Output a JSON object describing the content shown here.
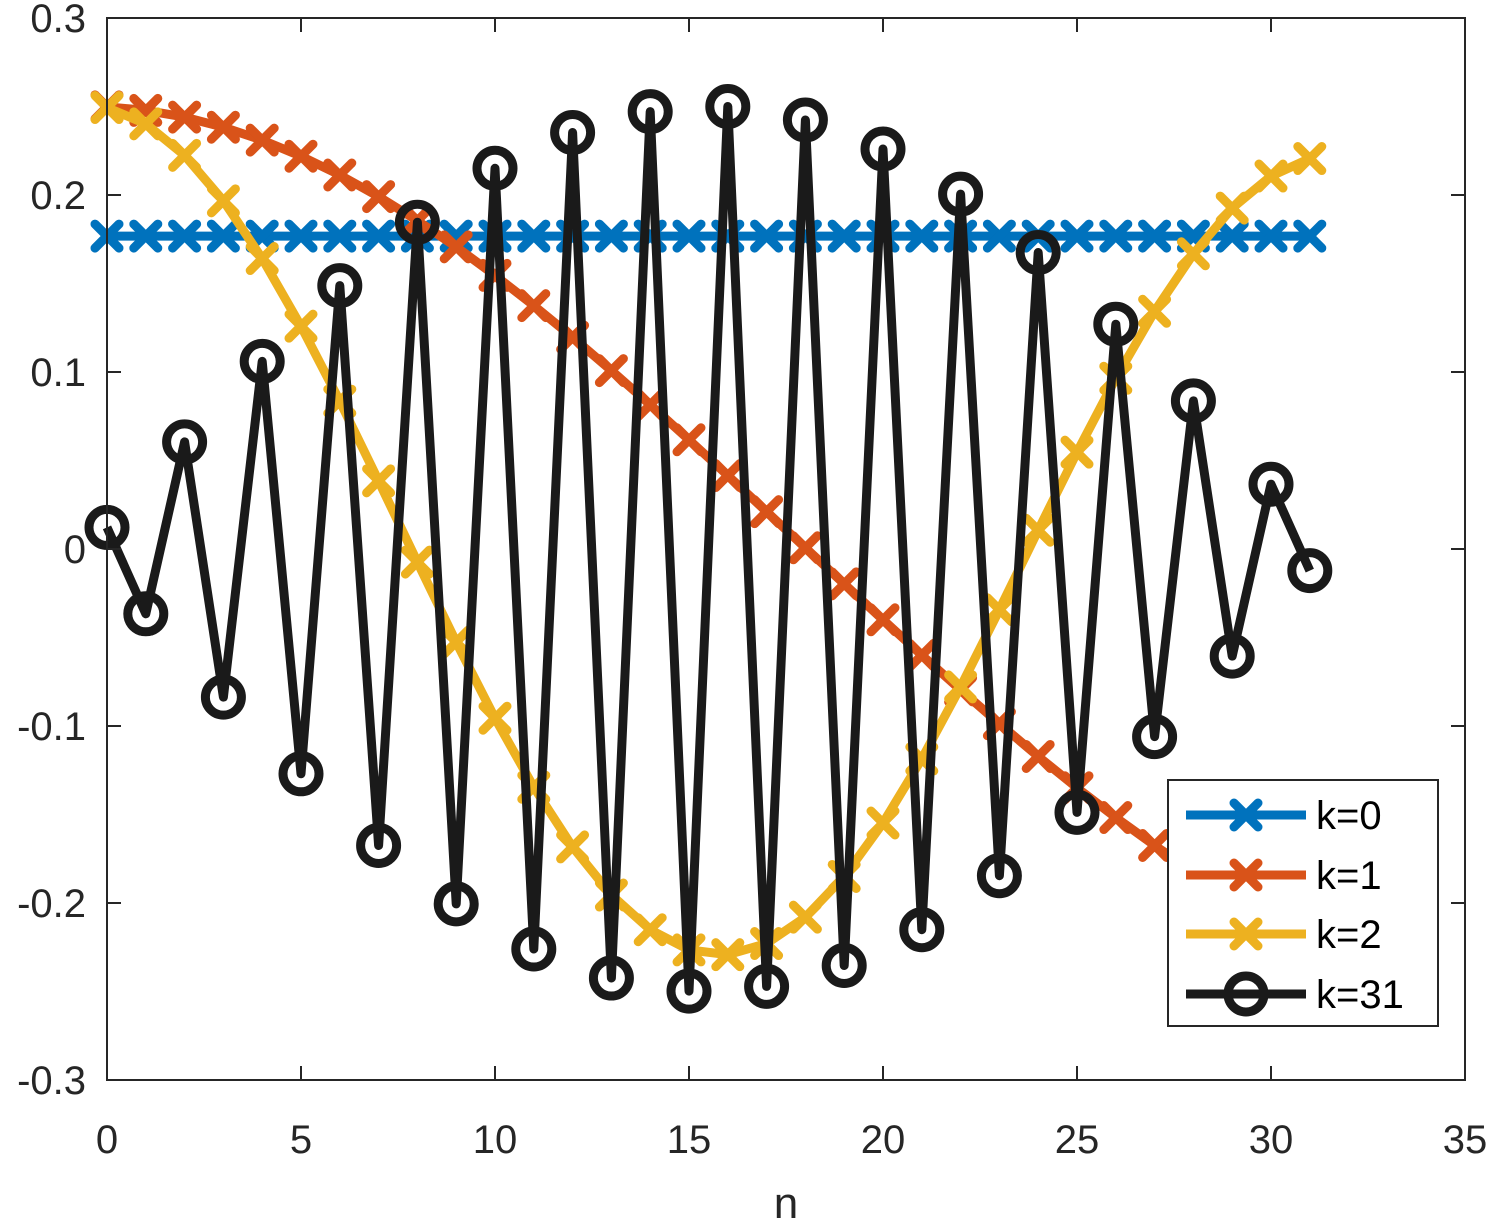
{
  "chart_data": {
    "type": "line",
    "title": "",
    "xlabel": "n",
    "ylabel": "",
    "xlim": [
      0,
      35
    ],
    "ylim": [
      -0.3,
      0.3
    ],
    "xticks": [
      0,
      5,
      10,
      15,
      20,
      25,
      30,
      35
    ],
    "xtick_labels": [
      "0",
      "5",
      "10",
      "15",
      "20",
      "25",
      "30",
      "35"
    ],
    "yticks": [
      0.3,
      0.2,
      0.1,
      0,
      -0.1,
      -0.2,
      -0.3
    ],
    "ytick_labels": [
      "0.3",
      "0.2",
      "0.1",
      "0",
      "-0.1",
      "-0.2",
      "-0.3"
    ],
    "grid": false,
    "legend_position": "bottom-right",
    "x": [
      0,
      1,
      2,
      3,
      4,
      5,
      6,
      7,
      8,
      9,
      10,
      11,
      12,
      13,
      14,
      15,
      16,
      17,
      18,
      19,
      20,
      21,
      22,
      23,
      24,
      25,
      26,
      27,
      28,
      29,
      30,
      31
    ],
    "series": [
      {
        "name": "k=0",
        "color": "#0072BD",
        "marker": "x",
        "values": [
          0.1768,
          0.1768,
          0.1768,
          0.1768,
          0.1768,
          0.1768,
          0.1768,
          0.1768,
          0.1768,
          0.1768,
          0.1768,
          0.1768,
          0.1768,
          0.1768,
          0.1768,
          0.1768,
          0.1768,
          0.1768,
          0.1768,
          0.1768,
          0.1768,
          0.1768,
          0.1768,
          0.1768,
          0.1768,
          0.1768,
          0.1768,
          0.1768,
          0.1768,
          0.1768,
          0.1768,
          0.1768
        ]
      },
      {
        "name": "k=1",
        "color": "#D95319",
        "marker": "x",
        "values": [
          0.2498,
          0.2478,
          0.244,
          0.2383,
          0.231,
          0.2219,
          0.2113,
          0.1991,
          0.1855,
          0.1707,
          0.1546,
          0.1375,
          0.1196,
          0.1008,
          0.0815,
          0.0617,
          0.0415,
          0.0211,
          0.0007,
          -0.0197,
          -0.04,
          -0.06,
          -0.0796,
          -0.0987,
          -0.1172,
          -0.1349,
          -0.1517,
          -0.1675,
          -0.1822,
          -0.1957,
          -0.2078,
          -0.2186
        ]
      },
      {
        "name": "k=2",
        "color": "#EDB120",
        "marker": "x",
        "values": [
          0.2494,
          0.2402,
          0.2224,
          0.1967,
          0.1641,
          0.1259,
          0.0835,
          0.0385,
          -0.0074,
          -0.0526,
          -0.0956,
          -0.1346,
          -0.1683,
          -0.1955,
          -0.2151,
          -0.2265,
          -0.2292,
          -0.2229,
          -0.208,
          -0.185,
          -0.1548,
          -0.1186,
          -0.0779,
          -0.0343,
          0.0106,
          0.0547,
          0.0965,
          0.1343,
          0.1668,
          0.1926,
          0.2107,
          0.2206
        ]
      },
      {
        "name": "k=31",
        "color": "#1A1A1A",
        "marker": "o",
        "values": [
          0.0122,
          -0.0366,
          0.0605,
          -0.0837,
          0.106,
          -0.127,
          0.1488,
          -0.1675,
          0.1846,
          -0.2005,
          0.2151,
          -0.226,
          0.2353,
          -0.2424,
          0.2471,
          -0.2498,
          0.25,
          -0.2471,
          0.2424,
          -0.2353,
          0.226,
          -0.2151,
          0.2005,
          -0.1846,
          0.1675,
          -0.1488,
          0.127,
          -0.106,
          0.0837,
          -0.0605,
          0.0366,
          -0.0122
        ]
      }
    ]
  }
}
